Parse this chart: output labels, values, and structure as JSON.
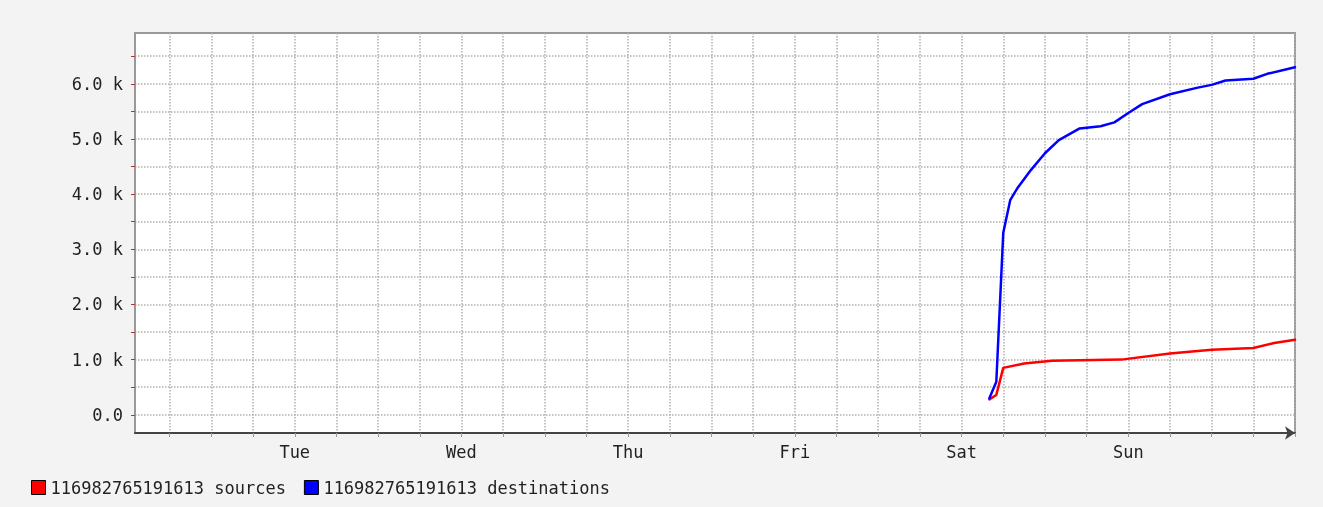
{
  "chart_data": {
    "type": "line",
    "categories": [
      null,
      null,
      null,
      null,
      null,
      null,
      null,
      null,
      null,
      null,
      null,
      null,
      null,
      null,
      null,
      null,
      null,
      null,
      null,
      null,
      null,
      null,
      null,
      "Tue",
      null,
      null,
      null,
      null,
      null,
      null,
      null,
      null,
      null,
      null,
      null,
      null,
      null,
      null,
      null,
      null,
      null,
      null,
      null,
      null,
      null,
      null,
      null,
      "Wed",
      null,
      null,
      null,
      null,
      null,
      null,
      null,
      null,
      null,
      null,
      null,
      null,
      null,
      null,
      null,
      null,
      null,
      null,
      null,
      null,
      null,
      null,
      null,
      "Thu",
      null,
      null,
      null,
      null,
      null,
      null,
      null,
      null,
      null,
      null,
      null,
      null,
      null,
      null,
      null,
      null,
      null,
      null,
      null,
      null,
      null,
      null,
      null,
      "Fri",
      null,
      null,
      null,
      null,
      null,
      null,
      null,
      null,
      null,
      null,
      null,
      null,
      null,
      null,
      null,
      null,
      null,
      null,
      null,
      null,
      null,
      null,
      null,
      "Sat",
      null,
      null,
      null,
      null,
      null,
      null,
      null,
      null,
      null,
      null,
      null,
      null,
      null,
      null,
      null,
      null,
      null,
      null,
      null,
      null,
      null,
      null,
      null,
      "Sun",
      null,
      null,
      null,
      null,
      null,
      null,
      null,
      null,
      null,
      null,
      null,
      null,
      null,
      null,
      null,
      null,
      null,
      null,
      null,
      null,
      null,
      null,
      null,
      null
    ],
    "series": [
      {
        "name": "116982765191613 sources",
        "color": "#ff0000",
        "values": [
          null,
          null,
          null,
          null,
          null,
          null,
          null,
          null,
          null,
          null,
          null,
          null,
          null,
          null,
          null,
          null,
          null,
          null,
          null,
          null,
          null,
          null,
          null,
          null,
          null,
          null,
          null,
          null,
          null,
          null,
          null,
          null,
          null,
          null,
          null,
          null,
          null,
          null,
          null,
          null,
          null,
          null,
          null,
          null,
          null,
          null,
          null,
          null,
          null,
          null,
          null,
          null,
          null,
          null,
          null,
          null,
          null,
          null,
          null,
          null,
          null,
          null,
          null,
          null,
          null,
          null,
          null,
          null,
          null,
          null,
          null,
          null,
          null,
          null,
          null,
          null,
          null,
          null,
          null,
          null,
          null,
          null,
          null,
          null,
          null,
          null,
          null,
          null,
          null,
          null,
          null,
          null,
          null,
          null,
          null,
          null,
          null,
          null,
          null,
          null,
          null,
          null,
          null,
          null,
          null,
          null,
          null,
          null,
          null,
          null,
          null,
          null,
          null,
          null,
          null,
          null,
          null,
          null,
          null,
          null,
          null,
          null,
          null,
          280,
          360,
          850,
          null,
          null,
          930,
          null,
          null,
          null,
          980,
          null,
          null,
          null,
          null,
          null,
          null,
          null,
          null,
          null,
          1000,
          null,
          null,
          null,
          null,
          null,
          null,
          1110,
          null,
          null,
          null,
          null,
          null,
          1180,
          null,
          null,
          null,
          null,
          null,
          1210,
          null,
          null,
          1300,
          null,
          null,
          1360
        ]
      },
      {
        "name": "116982765191613 destinations",
        "color": "#0000ff",
        "values": [
          null,
          null,
          null,
          null,
          null,
          null,
          null,
          null,
          null,
          null,
          null,
          null,
          null,
          null,
          null,
          null,
          null,
          null,
          null,
          null,
          null,
          null,
          null,
          null,
          null,
          null,
          null,
          null,
          null,
          null,
          null,
          null,
          null,
          null,
          null,
          null,
          null,
          null,
          null,
          null,
          null,
          null,
          null,
          null,
          null,
          null,
          null,
          null,
          null,
          null,
          null,
          null,
          null,
          null,
          null,
          null,
          null,
          null,
          null,
          null,
          null,
          null,
          null,
          null,
          null,
          null,
          null,
          null,
          null,
          null,
          null,
          null,
          null,
          null,
          null,
          null,
          null,
          null,
          null,
          null,
          null,
          null,
          null,
          null,
          null,
          null,
          null,
          null,
          null,
          null,
          null,
          null,
          null,
          null,
          null,
          null,
          null,
          null,
          null,
          null,
          null,
          null,
          null,
          null,
          null,
          null,
          null,
          null,
          null,
          null,
          null,
          null,
          null,
          null,
          null,
          null,
          null,
          null,
          null,
          null,
          null,
          null,
          null,
          300,
          600,
          3300,
          3890,
          4100,
          null,
          4440,
          null,
          4740,
          null,
          4980,
          null,
          null,
          5190,
          null,
          null,
          5230,
          null,
          5300,
          null,
          5470,
          null,
          5630,
          null,
          null,
          null,
          5810,
          null,
          null,
          null,
          5930,
          null,
          5980,
          null,
          6060,
          null,
          null,
          null,
          6090,
          null,
          6180,
          null,
          null,
          null,
          6300
        ]
      }
    ],
    "ylim": [
      -330,
      6920
    ],
    "yticks": [
      {
        "value": 0,
        "label": "0.0"
      },
      {
        "value": 500,
        "label": null
      },
      {
        "value": 1000,
        "label": "1.0 k"
      },
      {
        "value": 1500,
        "label": null
      },
      {
        "value": 2000,
        "label": "2.0 k"
      },
      {
        "value": 2500,
        "label": null
      },
      {
        "value": 3000,
        "label": "3.0 k"
      },
      {
        "value": 3500,
        "label": null
      },
      {
        "value": 4000,
        "label": "4.0 k"
      },
      {
        "value": 4500,
        "label": null
      },
      {
        "value": 5000,
        "label": "5.0 k"
      },
      {
        "value": 5500,
        "label": null
      },
      {
        "value": 6000,
        "label": "6.0 k"
      },
      {
        "value": 6500,
        "label": null
      }
    ],
    "grid": true,
    "legend": "bottom left",
    "marker": "none",
    "line_style": "solid"
  }
}
